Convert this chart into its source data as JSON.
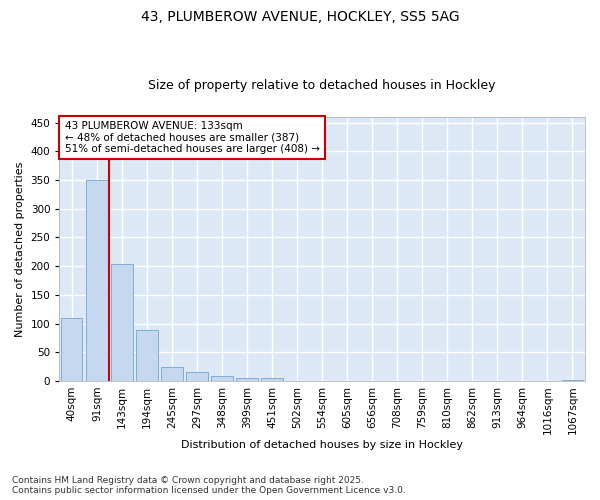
{
  "title1": "43, PLUMBEROW AVENUE, HOCKLEY, SS5 5AG",
  "title2": "Size of property relative to detached houses in Hockley",
  "xlabel": "Distribution of detached houses by size in Hockley",
  "ylabel": "Number of detached properties",
  "categories": [
    "40sqm",
    "91sqm",
    "143sqm",
    "194sqm",
    "245sqm",
    "297sqm",
    "348sqm",
    "399sqm",
    "451sqm",
    "502sqm",
    "554sqm",
    "605sqm",
    "656sqm",
    "708sqm",
    "759sqm",
    "810sqm",
    "862sqm",
    "913sqm",
    "964sqm",
    "1016sqm",
    "1067sqm"
  ],
  "values": [
    110,
    350,
    204,
    88,
    24,
    15,
    8,
    6,
    5,
    0,
    0,
    0,
    0,
    0,
    0,
    0,
    0,
    0,
    0,
    0,
    2
  ],
  "bar_color": "#c5d8f0",
  "bar_edge_color": "#7bafd4",
  "vline_color": "#cc0000",
  "annotation_text": "43 PLUMBEROW AVENUE: 133sqm\n← 48% of detached houses are smaller (387)\n51% of semi-detached houses are larger (408) →",
  "annotation_box_facecolor": "#ffffff",
  "annotation_box_edgecolor": "#cc0000",
  "ylim": [
    0,
    460
  ],
  "yticks": [
    0,
    50,
    100,
    150,
    200,
    250,
    300,
    350,
    400,
    450
  ],
  "fig_facecolor": "#ffffff",
  "plot_facecolor": "#dce8f5",
  "grid_color": "#ffffff",
  "footer_text": "Contains HM Land Registry data © Crown copyright and database right 2025.\nContains public sector information licensed under the Open Government Licence v3.0.",
  "title1_fontsize": 10,
  "title2_fontsize": 9,
  "axis_label_fontsize": 8,
  "tick_fontsize": 7.5,
  "annotation_fontsize": 7.5,
  "footer_fontsize": 6.5
}
